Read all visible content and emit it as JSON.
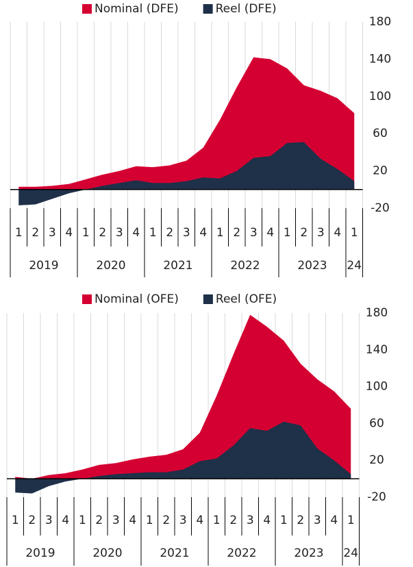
{
  "chart_data": [
    {
      "type": "area",
      "quarters": [
        "1",
        "2",
        "3",
        "4",
        "1",
        "2",
        "3",
        "4",
        "1",
        "2",
        "3",
        "4",
        "1",
        "2",
        "3",
        "4",
        "1",
        "2",
        "3",
        "4",
        "1"
      ],
      "years": [
        "2019",
        "2020",
        "2021",
        "2022",
        "2023",
        "24"
      ],
      "series": [
        {
          "name": "Nominal (DFE)",
          "color": "#d50032",
          "values": [
            3,
            3,
            4,
            6,
            11,
            16,
            20,
            25,
            24,
            26,
            31,
            45,
            75,
            110,
            142,
            140,
            130,
            112,
            106,
            98,
            82
          ]
        },
        {
          "name": "Reel (DFE)",
          "color": "#1f3049",
          "values": [
            -17,
            -16,
            -10,
            -4,
            0,
            4,
            7,
            10,
            7,
            7,
            9,
            13,
            12,
            20,
            34,
            36,
            50,
            51,
            33,
            22,
            9
          ]
        }
      ],
      "ylim": [
        -20,
        180
      ],
      "yticks": [
        180,
        140,
        100,
        60,
        20,
        -20
      ],
      "grid": true
    },
    {
      "type": "area",
      "quarters": [
        "1",
        "2",
        "3",
        "4",
        "1",
        "2",
        "3",
        "4",
        "1",
        "2",
        "3",
        "4",
        "1",
        "2",
        "3",
        "4",
        "1",
        "2",
        "3",
        "4",
        "1"
      ],
      "years": [
        "2019",
        "2020",
        "2021",
        "2022",
        "2023",
        "24"
      ],
      "series": [
        {
          "name": "Nominal (OFE)",
          "color": "#d50032",
          "values": [
            2,
            0,
            4,
            6,
            10,
            15,
            17,
            21,
            24,
            26,
            32,
            50,
            90,
            135,
            178,
            165,
            150,
            125,
            108,
            95,
            76
          ]
        },
        {
          "name": "Reel (OFE)",
          "color": "#1f3049",
          "values": [
            -15,
            -16,
            -8,
            -3,
            0,
            3,
            5,
            6,
            7,
            7,
            10,
            19,
            22,
            36,
            55,
            52,
            62,
            58,
            33,
            20,
            5
          ]
        }
      ],
      "ylim": [
        -20,
        180
      ],
      "yticks": [
        180,
        140,
        100,
        60,
        20,
        -20
      ],
      "grid": true
    }
  ]
}
